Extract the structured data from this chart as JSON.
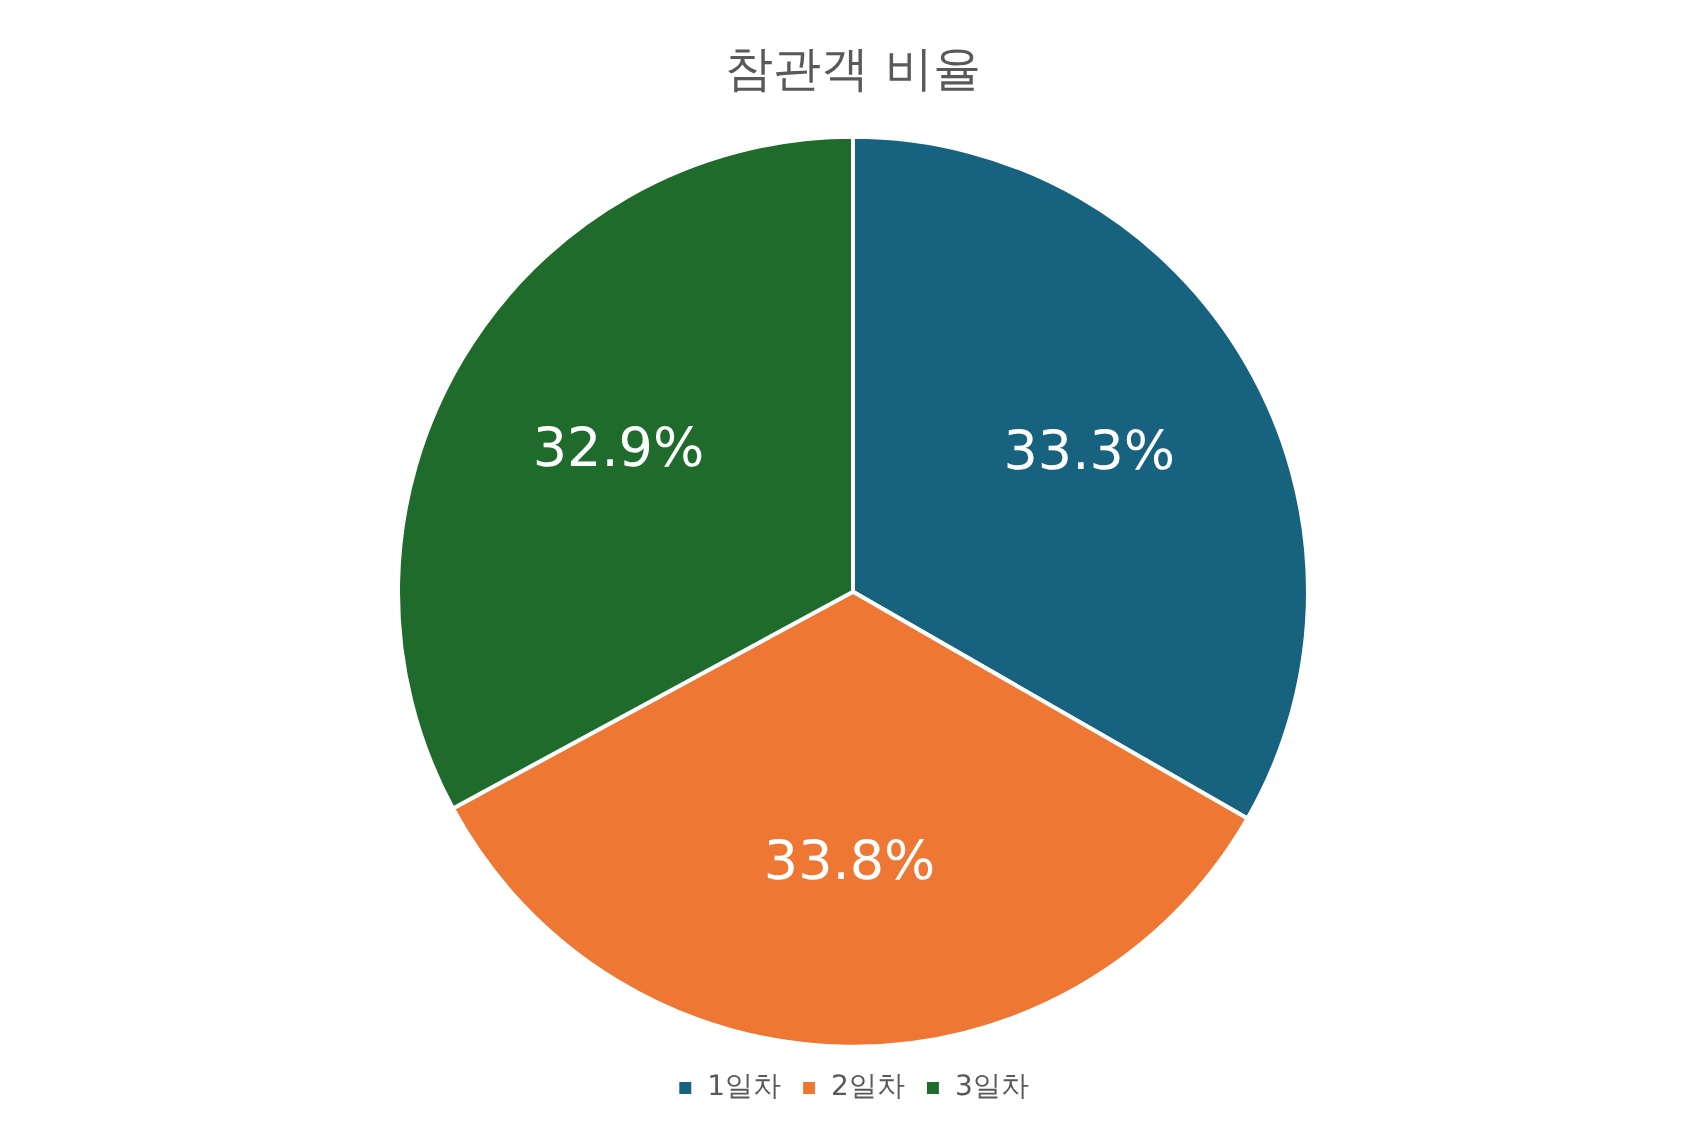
{
  "chart_data": {
    "type": "pie",
    "title": "참관객 비율",
    "categories": [
      "1일차",
      "2일차",
      "3일차"
    ],
    "values": [
      33.3,
      33.8,
      32.9
    ],
    "colors": [
      "#17627f",
      "#ee7833",
      "#1e6b2b"
    ],
    "value_labels": [
      "33.3%",
      "33.8%",
      "32.9%"
    ],
    "legend": "bottom"
  }
}
